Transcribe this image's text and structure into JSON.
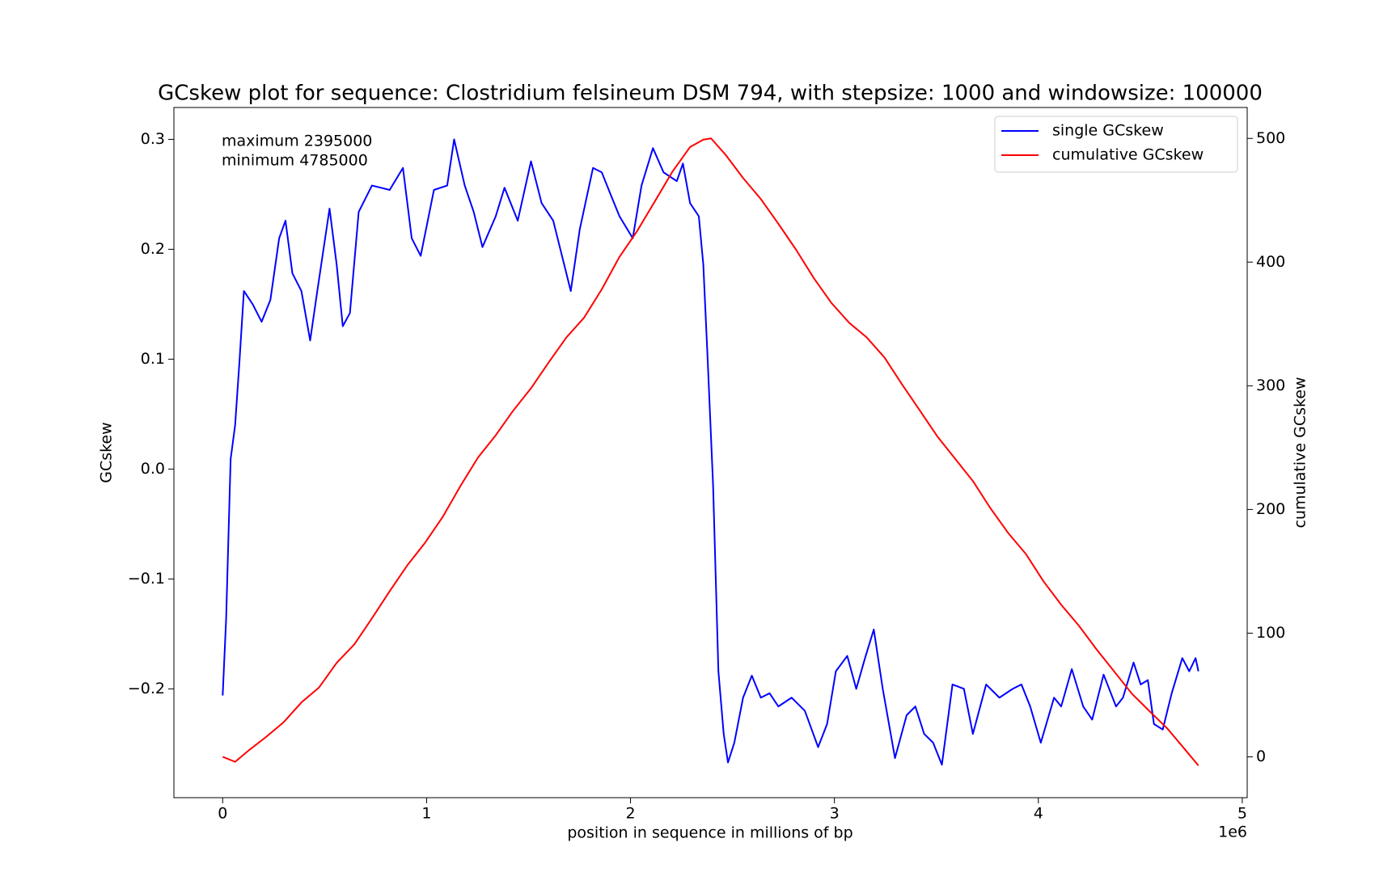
{
  "chart_data": {
    "type": "line",
    "title": "GCskew plot for sequence: Clostridium felsineum DSM 794, with stepsize: 1000 and windowsize: 100000",
    "xlabel": "position in sequence in millions of bp",
    "x_offset_label": "1e6",
    "ylabel": "GCskew",
    "y2label": "cumulative GCskew",
    "annotations": [
      "maximum 2395000",
      "minimum 4785000"
    ],
    "legend": "upper right",
    "xlim": [
      -239250,
      5024250
    ],
    "xticks": [
      {
        "value": 0,
        "label": "0"
      },
      {
        "value": 1000000,
        "label": "1"
      },
      {
        "value": 2000000,
        "label": "2"
      },
      {
        "value": 3000000,
        "label": "3"
      },
      {
        "value": 4000000,
        "label": "4"
      },
      {
        "value": 5000000,
        "label": "5"
      }
    ],
    "ylim": [
      -0.299,
      0.329
    ],
    "yticks": [
      {
        "value": -0.2,
        "label": "−0.2"
      },
      {
        "value": -0.1,
        "label": "−0.1"
      },
      {
        "value": 0,
        "label": "0.0"
      },
      0.1,
      0.2,
      0.3
    ],
    "y2lim": [
      -33,
      525
    ],
    "y2ticks": [
      0,
      100,
      200,
      300,
      400,
      500
    ],
    "series": [
      {
        "name": "single GCskew",
        "color": "#0000ff",
        "x": [
          0,
          17000,
          39000,
          61000,
          82000,
          104000,
          147000,
          191000,
          234000,
          277000,
          308000,
          342000,
          386000,
          429000,
          464000,
          524000,
          559000,
          589000,
          624000,
          667000,
          732000,
          819000,
          884000,
          927000,
          971000,
          1036000,
          1101000,
          1135000,
          1187000,
          1231000,
          1274000,
          1339000,
          1382000,
          1447000,
          1512000,
          1564000,
          1621000,
          1664000,
          1707000,
          1751000,
          1816000,
          1859000,
          1902000,
          1946000,
          2011000,
          2054000,
          2110000,
          2162000,
          2227000,
          2257000,
          2292000,
          2335000,
          2357000,
          2379000,
          2405000,
          2431000,
          2457000,
          2478000,
          2509000,
          2552000,
          2595000,
          2639000,
          2682000,
          2725000,
          2790000,
          2855000,
          2920000,
          2964000,
          3007000,
          3063000,
          3107000,
          3150000,
          3193000,
          3237000,
          3297000,
          3354000,
          3397000,
          3440000,
          3484000,
          3527000,
          3579000,
          3635000,
          3679000,
          3744000,
          3809000,
          3874000,
          3917000,
          3960000,
          4012000,
          4077000,
          4112000,
          4164000,
          4220000,
          4264000,
          4320000,
          4381000,
          4415000,
          4467000,
          4502000,
          4537000,
          4567000,
          4610000,
          4654000,
          4706000,
          4740000,
          4771000,
          4785000
        ],
        "values": [
          -0.206,
          -0.136,
          0.009,
          0.04,
          0.097,
          0.162,
          0.15,
          0.134,
          0.154,
          0.21,
          0.226,
          0.178,
          0.162,
          0.117,
          0.162,
          0.237,
          0.186,
          0.13,
          0.142,
          0.234,
          0.258,
          0.254,
          0.274,
          0.21,
          0.194,
          0.254,
          0.258,
          0.3,
          0.258,
          0.234,
          0.202,
          0.23,
          0.256,
          0.226,
          0.28,
          0.242,
          0.226,
          0.194,
          0.162,
          0.218,
          0.274,
          0.27,
          0.25,
          0.23,
          0.21,
          0.258,
          0.292,
          0.27,
          0.262,
          0.278,
          0.242,
          0.23,
          0.186,
          0.097,
          -0.015,
          -0.184,
          -0.241,
          -0.267,
          -0.249,
          -0.208,
          -0.188,
          -0.208,
          -0.204,
          -0.216,
          -0.208,
          -0.22,
          -0.253,
          -0.232,
          -0.184,
          -0.17,
          -0.2,
          -0.172,
          -0.146,
          -0.2,
          -0.263,
          -0.224,
          -0.216,
          -0.241,
          -0.249,
          -0.269,
          -0.196,
          -0.2,
          -0.241,
          -0.196,
          -0.208,
          -0.2,
          -0.196,
          -0.216,
          -0.249,
          -0.208,
          -0.216,
          -0.182,
          -0.216,
          -0.228,
          -0.187,
          -0.216,
          -0.208,
          -0.176,
          -0.196,
          -0.192,
          -0.232,
          -0.237,
          -0.204,
          -0.172,
          -0.184,
          -0.172,
          -0.184
        ]
      },
      {
        "name": "cumulative GCskew",
        "color": "#ff0000",
        "axis": "y2",
        "x": [
          0,
          61000,
          126000,
          212000,
          299000,
          386000,
          472000,
          559000,
          646000,
          732000,
          819000,
          906000,
          992000,
          1079000,
          1166000,
          1252000,
          1339000,
          1425000,
          1512000,
          1599000,
          1685000,
          1772000,
          1859000,
          1945000,
          2032000,
          2119000,
          2205000,
          2292000,
          2357000,
          2395000,
          2465000,
          2552000,
          2639000,
          2725000,
          2812000,
          2899000,
          2985000,
          3072000,
          3159000,
          3245000,
          3332000,
          3419000,
          3505000,
          3592000,
          3679000,
          3765000,
          3852000,
          3939000,
          4025000,
          4112000,
          4199000,
          4285000,
          4372000,
          4459000,
          4545000,
          4632000,
          4719000,
          4785000
        ],
        "values": [
          0,
          -4,
          5,
          16,
          28,
          44,
          56,
          76,
          91,
          112,
          134,
          155,
          173,
          194,
          219,
          242,
          260,
          280,
          298,
          319,
          339,
          355,
          378,
          404,
          425,
          449,
          473,
          493,
          499,
          500,
          487,
          468,
          451,
          431,
          410,
          387,
          367,
          351,
          339,
          323,
          301,
          280,
          259,
          241,
          223,
          201,
          181,
          164,
          142,
          123,
          106,
          87,
          69,
          51,
          37,
          23,
          6,
          -7
        ]
      }
    ]
  }
}
